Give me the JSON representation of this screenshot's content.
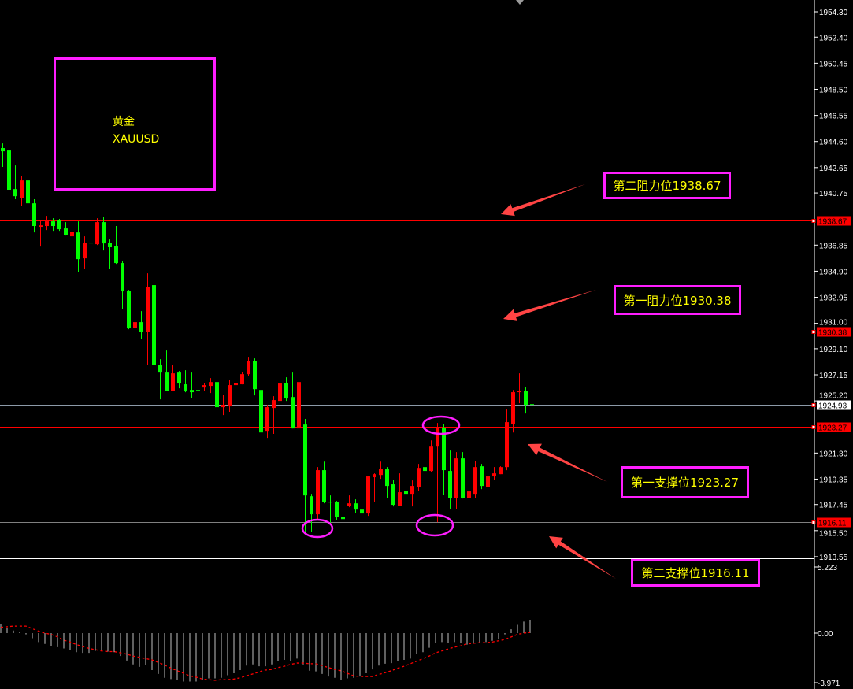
{
  "chart_data": {
    "type": "candlestick",
    "symbol_label": [
      "黄金",
      "XAUUSD"
    ],
    "up_color": "#ff0000",
    "down_color": "#00ff00",
    "background": "#000000",
    "ylim": [
      1913.55,
      1954.3
    ],
    "y_ticks": [
      "1954.30",
      "1952.40",
      "1950.45",
      "1948.50",
      "1946.55",
      "1944.60",
      "1942.65",
      "1940.75",
      "1936.85",
      "1934.90",
      "1932.95",
      "1931.00",
      "1929.10",
      "1927.15",
      "1925.20",
      "1921.30",
      "1919.35",
      "1917.45",
      "1915.50",
      "1913.55"
    ],
    "candles": {
      "open": [
        1944.11,
        1943.93,
        1941.04,
        1940.4,
        1941.69,
        1939.98,
        1938.22,
        1938.28,
        1938.63,
        1938.75,
        1938.1,
        1937.51,
        1937.8,
        1935.86,
        1937.04,
        1936.92,
        1938.57,
        1937.04,
        1936.8,
        1935.51,
        1933.45,
        1930.68,
        1931.09,
        1930.38,
        1933.86,
        1927.91,
        1927.32,
        1925.97,
        1927.32,
        1926.44,
        1926.02,
        1926.02,
        1926.2,
        1926.32,
        1926.61,
        1924.73,
        1924.79,
        1926.38,
        1926.44,
        1927.2,
        1928.2,
        1926.02,
        1922.96,
        1924.67,
        1925.2,
        1926.55,
        1925.49,
        1923.14,
        1923.43,
        1918.07,
        1916.72,
        1920.02,
        1917.66,
        1917.66,
        1916.54,
        1917.37,
        1917.54,
        1917.07,
        1916.78,
        1919.49,
        1919.66,
        1920.08,
        1918.96,
        1917.37,
        1918.49,
        1918.25,
        1918.78,
        1920.25,
        1919.96,
        1921.78,
        1923.2,
        1919.96,
        1917.96,
        1920.9,
        1917.96,
        1918.25,
        1920.31,
        1918.78,
        1919.55,
        1919.72,
        1920.25,
        1923.49,
        1925.85,
        1925.97,
        1924.96
      ],
      "high": [
        1944.46,
        1944.22,
        1942.81,
        1942.05,
        1941.75,
        1940.28,
        1938.75,
        1939.04,
        1938.86,
        1938.81,
        1938.57,
        1937.92,
        1938.63,
        1937.51,
        1937.39,
        1938.86,
        1938.98,
        1937.27,
        1938.28,
        1935.68,
        1933.5,
        1932.39,
        1931.91,
        1934.74,
        1934.21,
        1928.32,
        1928.97,
        1927.91,
        1927.44,
        1927.5,
        1927.32,
        1926.44,
        1926.5,
        1926.91,
        1926.73,
        1925.67,
        1926.79,
        1926.61,
        1927.38,
        1928.44,
        1928.38,
        1926.61,
        1924.91,
        1925.55,
        1927.73,
        1926.97,
        1927.32,
        1929.15,
        1923.85,
        1918.25,
        1920.25,
        1920.66,
        1918.13,
        1917.72,
        1917.01,
        1918.13,
        1917.84,
        1917.13,
        1919.6,
        1919.78,
        1920.66,
        1920.25,
        1919.31,
        1919.78,
        1918.72,
        1919.25,
        1920.49,
        1921.14,
        1922.25,
        1923.55,
        1923.49,
        1921.49,
        1921.37,
        1921.37,
        1919.31,
        1920.72,
        1920.49,
        1919.78,
        1920.25,
        1920.31,
        1924.55,
        1926.02,
        1927.26,
        1926.26,
        1925.02
      ],
      "low": [
        1942.7,
        1940.87,
        1940.28,
        1939.81,
        1939.87,
        1937.8,
        1936.74,
        1937.98,
        1937.92,
        1937.92,
        1937.57,
        1936.92,
        1934.86,
        1935.1,
        1936.04,
        1936.86,
        1936.45,
        1935.1,
        1935.45,
        1932.09,
        1930.56,
        1930.15,
        1929.85,
        1927.91,
        1926.73,
        1925.32,
        1925.97,
        1925.97,
        1926.14,
        1925.85,
        1925.38,
        1925.32,
        1925.97,
        1925.79,
        1924.38,
        1924.14,
        1924.38,
        1925.67,
        1926.44,
        1927.08,
        1925.61,
        1922.84,
        1922.43,
        1922.73,
        1925.2,
        1925.2,
        1923.14,
        1921.08,
        1915.25,
        1915.42,
        1916.31,
        1917.54,
        1916.01,
        1916.31,
        1915.89,
        1917.25,
        1916.84,
        1916.19,
        1916.6,
        1917.66,
        1919.37,
        1917.96,
        1917.31,
        1917.37,
        1917.07,
        1917.31,
        1918.49,
        1919.43,
        1919.9,
        1916.13,
        1918.19,
        1917.13,
        1917.13,
        1917.9,
        1917.37,
        1917.96,
        1918.6,
        1918.72,
        1919.31,
        1919.72,
        1920.02,
        1922.84,
        1925.02,
        1924.26,
        1924.43
      ],
      "close": [
        1943.87,
        1940.99,
        1940.51,
        1941.69,
        1939.98,
        1938.28,
        1938.33,
        1938.63,
        1938.28,
        1938.04,
        1937.63,
        1937.86,
        1935.8,
        1937.04,
        1936.98,
        1938.57,
        1936.98,
        1936.69,
        1935.51,
        1933.39,
        1930.68,
        1931.09,
        1930.38,
        1933.74,
        1927.91,
        1927.32,
        1925.97,
        1927.26,
        1926.5,
        1925.91,
        1925.85,
        1925.97,
        1926.38,
        1926.61,
        1924.73,
        1924.91,
        1926.38,
        1926.55,
        1927.2,
        1928.2,
        1926.08,
        1922.84,
        1924.73,
        1925.26,
        1926.5,
        1925.38,
        1923.14,
        1926.61,
        1918.13,
        1916.72,
        1920.02,
        1917.66,
        1917.6,
        1916.54,
        1916.36,
        1917.54,
        1917.07,
        1916.78,
        1919.55,
        1919.72,
        1920.13,
        1918.84,
        1917.43,
        1918.37,
        1918.25,
        1918.84,
        1920.19,
        1919.96,
        1921.78,
        1923.2,
        1920.02,
        1917.96,
        1920.9,
        1917.96,
        1918.43,
        1920.25,
        1918.84,
        1919.55,
        1919.78,
        1920.25,
        1923.61,
        1925.85,
        1925.97,
        1924.91,
        1924.93
      ]
    },
    "horizontal_lines": [
      {
        "value": "1938.67",
        "color": "#ff0000",
        "tag_bg": "#ff0000",
        "tag_fg": "#000000"
      },
      {
        "value": "1930.38",
        "color": "#808080",
        "tag_bg": "#ff0000",
        "tag_fg": "#000000"
      },
      {
        "value": "1924.93",
        "color": "#8c9aa8",
        "tag_bg": "#ffffff",
        "tag_fg": "#000000"
      },
      {
        "value": "1923.27",
        "color": "#ff0000",
        "tag_bg": "#ff0000",
        "tag_fg": "#000000"
      },
      {
        "value": "1916.11",
        "color": "#808080",
        "tag_bg": "#ff0000",
        "tag_fg": "#000000"
      }
    ],
    "annotations": [
      {
        "text": "第二阻力位1938.67"
      },
      {
        "text": "第一阻力位1930.38"
      },
      {
        "text": "第一支撑位1923.27"
      },
      {
        "text": "第二支撑位1916.11"
      }
    ],
    "indicator": {
      "ylim": [
        -3.971,
        5.223
      ],
      "y_ticks": [
        "5.223",
        "0.00",
        "-3.971"
      ],
      "histogram_color": "#c0c0c0",
      "signal_color": "#ff0000",
      "histogram": [
        0.7,
        0.4,
        0.2,
        0.1,
        -0.1,
        -0.4,
        -0.7,
        -0.85,
        -1.0,
        -1.1,
        -1.2,
        -1.3,
        -1.5,
        -1.55,
        -1.55,
        -1.4,
        -1.4,
        -1.45,
        -1.5,
        -1.8,
        -2.15,
        -2.45,
        -2.65,
        -2.5,
        -2.9,
        -3.2,
        -3.5,
        -3.6,
        -3.7,
        -3.8,
        -3.8,
        -3.8,
        -3.65,
        -3.55,
        -3.55,
        -3.5,
        -3.3,
        -3.15,
        -2.9,
        -2.55,
        -2.45,
        -2.6,
        -2.6,
        -2.45,
        -2.2,
        -2.1,
        -2.2,
        -2.0,
        -2.45,
        -2.95,
        -3.0,
        -3.2,
        -3.4,
        -3.5,
        -3.65,
        -3.55,
        -3.5,
        -3.4,
        -3.15,
        -2.85,
        -2.55,
        -2.4,
        -2.35,
        -2.2,
        -2.1,
        -2.0,
        -1.65,
        -1.5,
        -1.15,
        -0.75,
        -0.7,
        -0.8,
        -0.7,
        -0.8,
        -0.9,
        -0.75,
        -0.75,
        -0.7,
        -0.6,
        -0.5,
        -0.1,
        0.3,
        0.65,
        0.9,
        1.05
      ],
      "signal": [
        0.45,
        0.5,
        0.55,
        0.55,
        0.55,
        0.35,
        0.15,
        0,
        -0.1,
        -0.3,
        -0.55,
        -0.7,
        -0.9,
        -1.05,
        -1.2,
        -1.3,
        -1.4,
        -1.45,
        -1.45,
        -1.55,
        -1.65,
        -1.8,
        -1.9,
        -2.0,
        -2.1,
        -2.3,
        -2.5,
        -2.75,
        -2.95,
        -3.15,
        -3.35,
        -3.45,
        -3.6,
        -3.65,
        -3.7,
        -3.65,
        -3.65,
        -3.6,
        -3.5,
        -3.35,
        -3.2,
        -3.05,
        -2.9,
        -2.85,
        -2.7,
        -2.6,
        -2.45,
        -2.35,
        -2.35,
        -2.4,
        -2.4,
        -2.55,
        -2.7,
        -2.85,
        -2.95,
        -3.15,
        -3.35,
        -3.4,
        -3.4,
        -3.4,
        -3.25,
        -3.1,
        -2.95,
        -2.75,
        -2.6,
        -2.4,
        -2.2,
        -2.0,
        -1.8,
        -1.55,
        -1.4,
        -1.25,
        -1.1,
        -1.0,
        -0.85,
        -0.8,
        -0.75,
        -0.75,
        -0.7,
        -0.6,
        -0.5,
        -0.3,
        -0.1,
        0.0,
        0.05
      ]
    },
    "colors": {
      "annotation_border": "#ff1eff",
      "annotation_text": "#ffff00",
      "arrow": "#ff4444",
      "ellipse": "#ff1eff"
    }
  }
}
